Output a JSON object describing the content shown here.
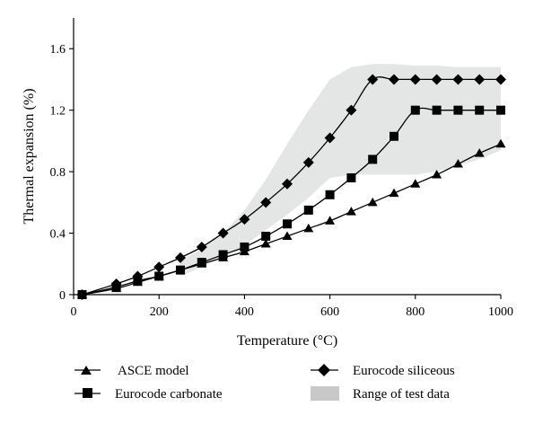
{
  "chart_data": {
    "type": "line",
    "xlabel": "Temperature (°C)",
    "ylabel": "Thermal expansion (%)",
    "xlim": [
      0,
      1000
    ],
    "ylim": [
      0,
      1.8
    ],
    "x_ticks": [
      0,
      200,
      400,
      600,
      800,
      1000
    ],
    "y_ticks": [
      0,
      0.4,
      0.8,
      1.2,
      1.6
    ],
    "x_tick_labels": [
      "0",
      "200",
      "400",
      "600",
      "800",
      "1000"
    ],
    "y_tick_labels": [
      "0",
      "0.4",
      "0.8",
      "1.2",
      "1.6"
    ],
    "grid": false,
    "legend_position": "bottom",
    "series": [
      {
        "name": "ASCE model",
        "marker": "triangle",
        "color": "#000000",
        "x": [
          20,
          100,
          150,
          200,
          250,
          300,
          350,
          400,
          450,
          500,
          550,
          600,
          650,
          700,
          750,
          800,
          850,
          900,
          950,
          1000
        ],
        "y": [
          0.0,
          0.04,
          0.08,
          0.12,
          0.16,
          0.2,
          0.24,
          0.28,
          0.33,
          0.38,
          0.43,
          0.48,
          0.54,
          0.6,
          0.66,
          0.72,
          0.78,
          0.85,
          0.92,
          0.98
        ]
      },
      {
        "name": "Eurocode carbonate",
        "marker": "square",
        "color": "#000000",
        "x": [
          20,
          100,
          150,
          200,
          250,
          300,
          350,
          400,
          450,
          500,
          550,
          600,
          650,
          700,
          750,
          800,
          850,
          900,
          950,
          1000
        ],
        "y": [
          0.0,
          0.05,
          0.09,
          0.12,
          0.16,
          0.21,
          0.26,
          0.31,
          0.38,
          0.46,
          0.55,
          0.65,
          0.76,
          0.88,
          1.03,
          1.2,
          1.2,
          1.2,
          1.2,
          1.2
        ]
      },
      {
        "name": "Eurocode siliceous",
        "marker": "diamond",
        "color": "#000000",
        "x": [
          20,
          100,
          150,
          200,
          250,
          300,
          350,
          400,
          450,
          500,
          550,
          600,
          650,
          700,
          750,
          800,
          850,
          900,
          950,
          1000
        ],
        "y": [
          0.0,
          0.07,
          0.12,
          0.18,
          0.24,
          0.31,
          0.4,
          0.49,
          0.6,
          0.72,
          0.86,
          1.02,
          1.2,
          1.4,
          1.4,
          1.4,
          1.4,
          1.4,
          1.4,
          1.4
        ]
      }
    ],
    "band": {
      "name": "Range of test data",
      "color": "#e4e6e6",
      "x": [
        250,
        300,
        350,
        400,
        450,
        500,
        550,
        600,
        650,
        700,
        750,
        800,
        850,
        900,
        950,
        1000
      ],
      "upper": [
        0.22,
        0.3,
        0.4,
        0.55,
        0.75,
        0.98,
        1.2,
        1.4,
        1.48,
        1.5,
        1.5,
        1.49,
        1.49,
        1.48,
        1.48,
        1.48
      ],
      "lower": [
        0.12,
        0.18,
        0.25,
        0.32,
        0.42,
        0.52,
        0.63,
        0.76,
        0.78,
        0.78,
        0.78,
        0.78,
        0.8,
        0.84,
        0.88,
        0.94
      ]
    }
  }
}
